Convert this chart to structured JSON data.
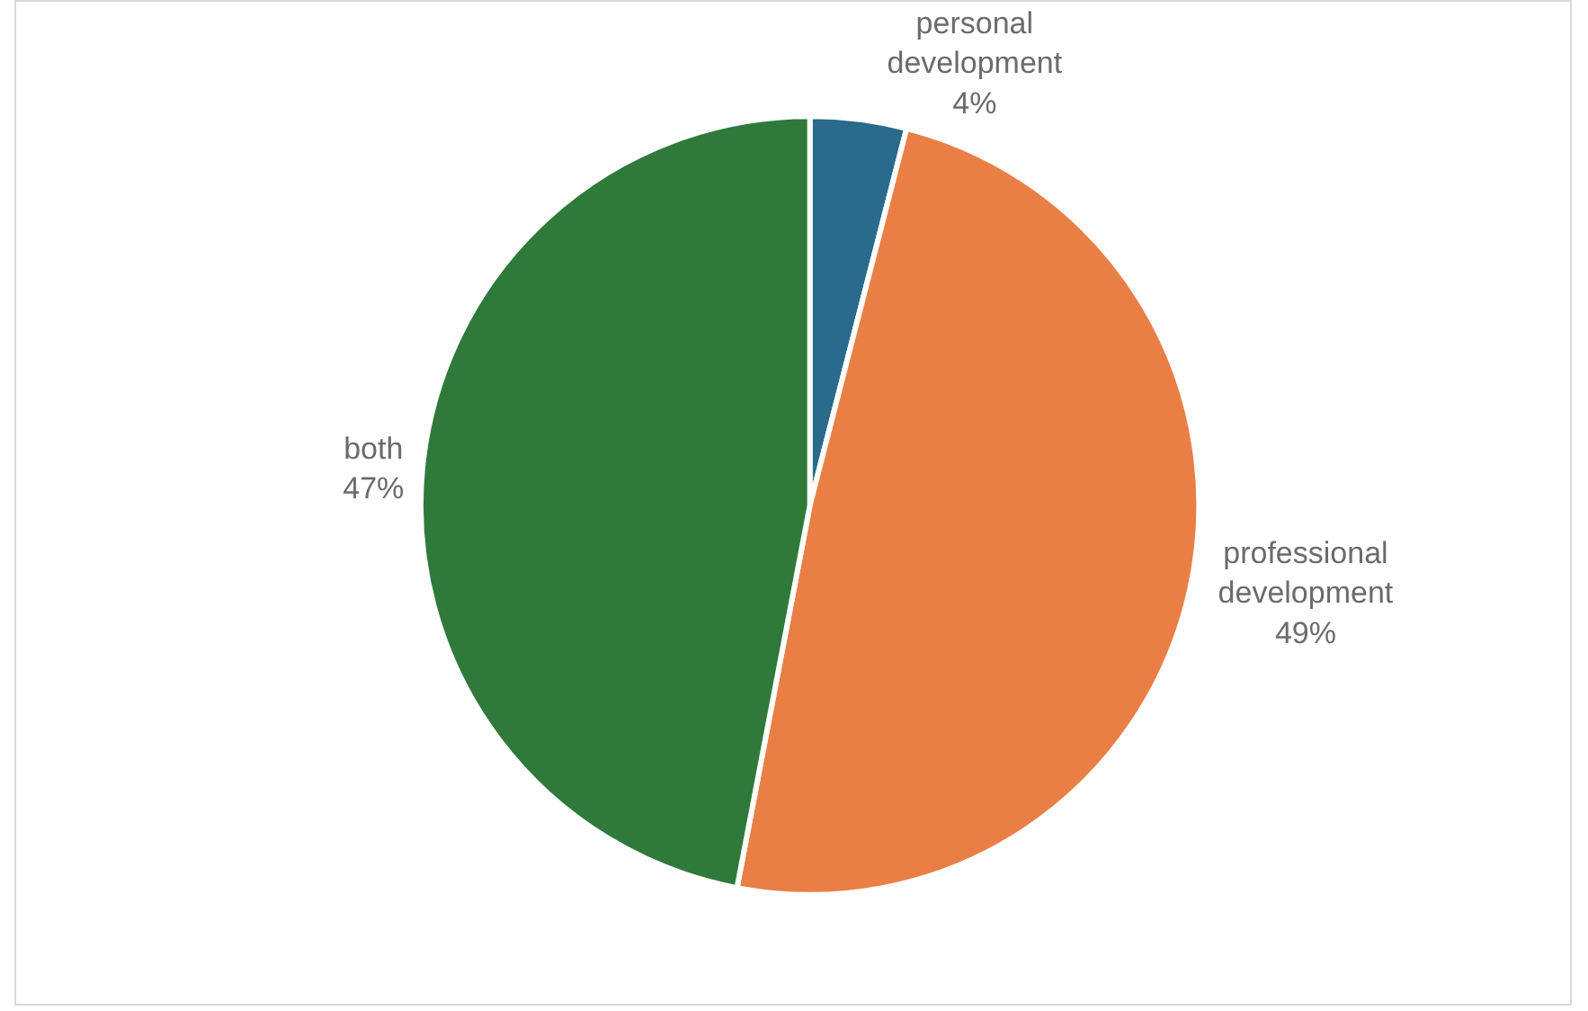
{
  "chart_data": {
    "type": "pie",
    "categories": [
      "personal development",
      "professional development",
      "both"
    ],
    "values": [
      4,
      49,
      47
    ],
    "value_labels": [
      "4%",
      "49%",
      "47%"
    ],
    "colors": [
      "#2a6a8b",
      "#e97f45",
      "#2f7a3b"
    ],
    "legend": false
  }
}
